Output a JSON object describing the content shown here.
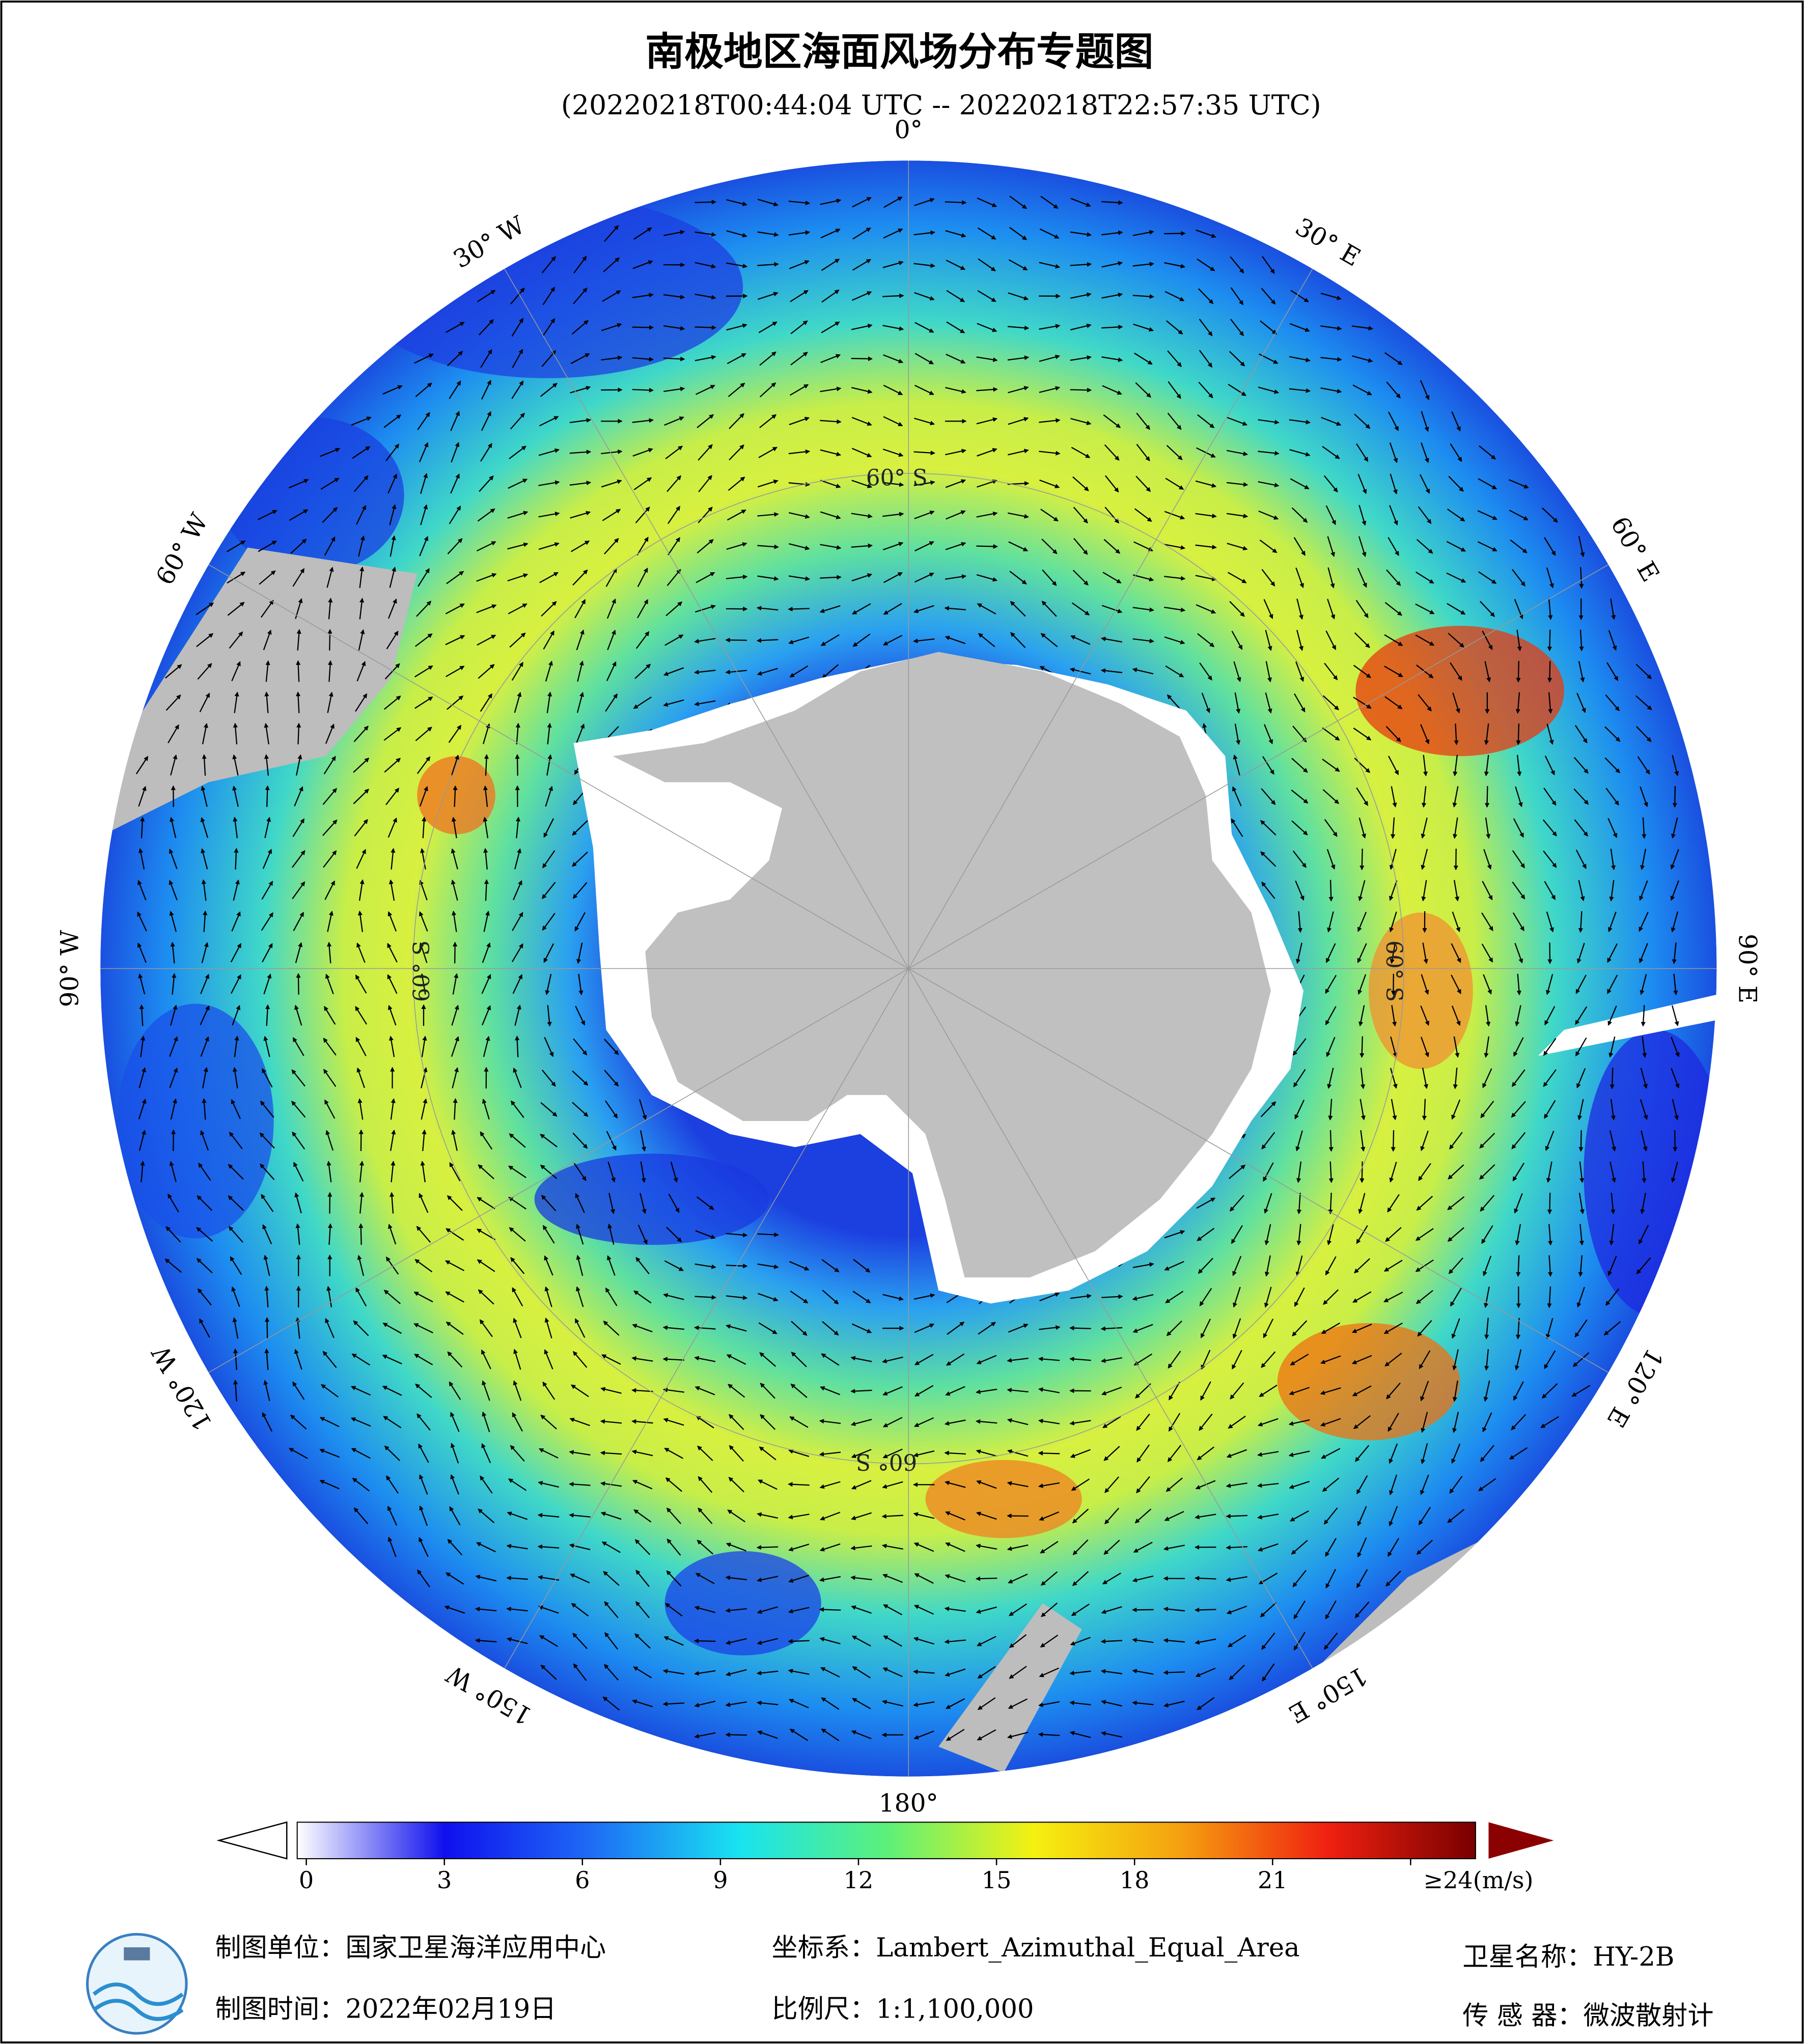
{
  "header": {
    "title": "南极地区海面风场分布专题图",
    "subtitle": "(20220218T00:44:04 UTC -- 20220218T22:57:35 UTC)"
  },
  "map": {
    "longitude_labels": [
      "0°",
      "30° E",
      "60° E",
      "90° E",
      "120° E",
      "150° E",
      "180°",
      "150° W",
      "120° W",
      "90° W",
      "60° W",
      "30° W"
    ],
    "latitude_labels": [
      "60° S",
      "60° S",
      "60° S",
      "60° S"
    ]
  },
  "colorbar": {
    "ticks": [
      0,
      3,
      6,
      9,
      12,
      15,
      18,
      21,
      {
        "value": 24,
        "label": "≥24(m/s)"
      }
    ]
  },
  "footer": {
    "producer": "制图单位：国家卫星海洋应用中心",
    "date": "制图时间：2022年02月19日",
    "projection": "坐标系：Lambert_Azimuthal_Equal_Area",
    "scale": "比例尺：1:1,100,000",
    "satellite": "卫星名称：HY-2B",
    "sensor": "传 感 器：微波散射计"
  }
}
